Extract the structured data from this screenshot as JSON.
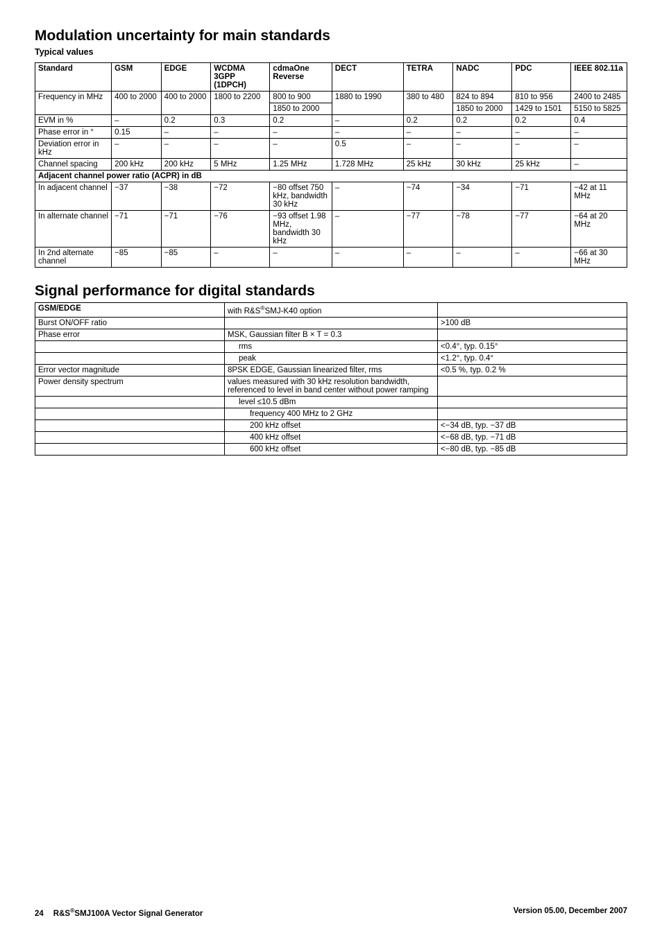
{
  "section1": {
    "title": "Modulation uncertainty for main standards",
    "subtitle": "Typical values",
    "headers": [
      "Standard",
      "GSM",
      "EDGE",
      "WCDMA 3GPP (1DPCH)",
      "cdmaOne Reverse",
      "DECT",
      "TETRA",
      "NADC",
      "PDC",
      "IEEE 802.11a"
    ],
    "row_freq": {
      "label": "Frequency in MHz",
      "gsm": "400 to 2000",
      "edge": "400 to 2000",
      "wcdma": "1800 to 2200",
      "cdma_a": "800 to 900",
      "cdma_b": "1850 to 2000",
      "dect": "1880 to 1990",
      "tetra": "380 to 480",
      "nadc_a": "824 to 894",
      "nadc_b": "1850 to 2000",
      "pdc_a": "810 to 956",
      "pdc_b": "1429 to 1501",
      "ieee_a": "2400 to 2485",
      "ieee_b": "5150 to 5825"
    },
    "rows": [
      {
        "label": "EVM in %",
        "c": [
          "–",
          "0.2",
          "0.3",
          "0.2",
          "–",
          "0.2",
          "0.2",
          "0.2",
          "0.4"
        ]
      },
      {
        "label": "Phase error in °",
        "c": [
          "0.15",
          "–",
          "–",
          "–",
          "–",
          "–",
          "–",
          "–",
          "–"
        ]
      },
      {
        "label": "Deviation error in kHz",
        "c": [
          "–",
          "–",
          "–",
          "–",
          "0.5",
          "–",
          "–",
          "–",
          "–"
        ]
      },
      {
        "label": "Channel spacing",
        "c": [
          "200 kHz",
          "200 kHz",
          "5 MHz",
          "1.25 MHz",
          "1.728 MHz",
          "25 kHz",
          "30 kHz",
          "25 kHz",
          "–"
        ]
      }
    ],
    "acpr_header": "Adjacent channel power ratio (ACPR) in dB",
    "acpr_rows": [
      {
        "label": "In adjacent channel",
        "c": [
          "−37",
          "−38",
          "−72",
          "−80 offset 750 kHz, bandwidth 30 kHz",
          "–",
          "−74",
          "−34",
          "−71",
          "−42 at 11 MHz"
        ]
      },
      {
        "label": "In alternate channel",
        "c": [
          "−71",
          "−71",
          "−76",
          "−93 offset 1.98 MHz, bandwidth 30 kHz",
          "–",
          "−77",
          "−78",
          "−77",
          "−64 at 20 MHz"
        ]
      },
      {
        "label": "In 2nd alternate channel",
        "c": [
          "−85",
          "−85",
          "–",
          "–",
          "–",
          "–",
          "–",
          "–",
          "−66 at 30 MHz"
        ]
      }
    ]
  },
  "section2": {
    "title": "Signal performance for digital standards",
    "rows": [
      {
        "c": [
          "GSM/EDGE",
          "with R&S®SMJ-K40 option",
          ""
        ],
        "bold0": true
      },
      {
        "c": [
          "Burst ON/OFF ratio",
          "",
          ">100 dB"
        ]
      },
      {
        "c": [
          "Phase error",
          "MSK, Gaussian filter B × T = 0.3",
          ""
        ]
      },
      {
        "c": [
          "",
          "rms",
          "<0.4°, typ. 0.15°"
        ],
        "i": 1
      },
      {
        "c": [
          "",
          "peak",
          "<1.2°, typ. 0.4°"
        ],
        "i": 1
      },
      {
        "c": [
          "Error vector magnitude",
          "8PSK EDGE, Gaussian linearized filter, rms",
          "<0.5 %, typ. 0.2 %"
        ]
      },
      {
        "c": [
          "Power density spectrum",
          "values measured with 30 kHz resolution bandwidth, referenced to level in band center without power ramping",
          ""
        ]
      },
      {
        "c": [
          "",
          "level ≤10.5 dBm",
          ""
        ],
        "i": 1
      },
      {
        "c": [
          "",
          "frequency 400 MHz to 2 GHz",
          ""
        ],
        "i": 2
      },
      {
        "c": [
          "",
          "200 kHz offset",
          "<−34 dB, typ. −37 dB"
        ],
        "i": 2
      },
      {
        "c": [
          "",
          "400 kHz offset",
          "<−68 dB, typ. −71 dB"
        ],
        "i": 2
      },
      {
        "c": [
          "",
          "600 kHz offset",
          "<−80 dB, typ. −85 dB"
        ],
        "i": 2
      }
    ]
  },
  "footer": {
    "page": "24",
    "product": "R&S®SMJ100A Vector Signal Generator",
    "version": "Version 05.00, December 2007"
  }
}
